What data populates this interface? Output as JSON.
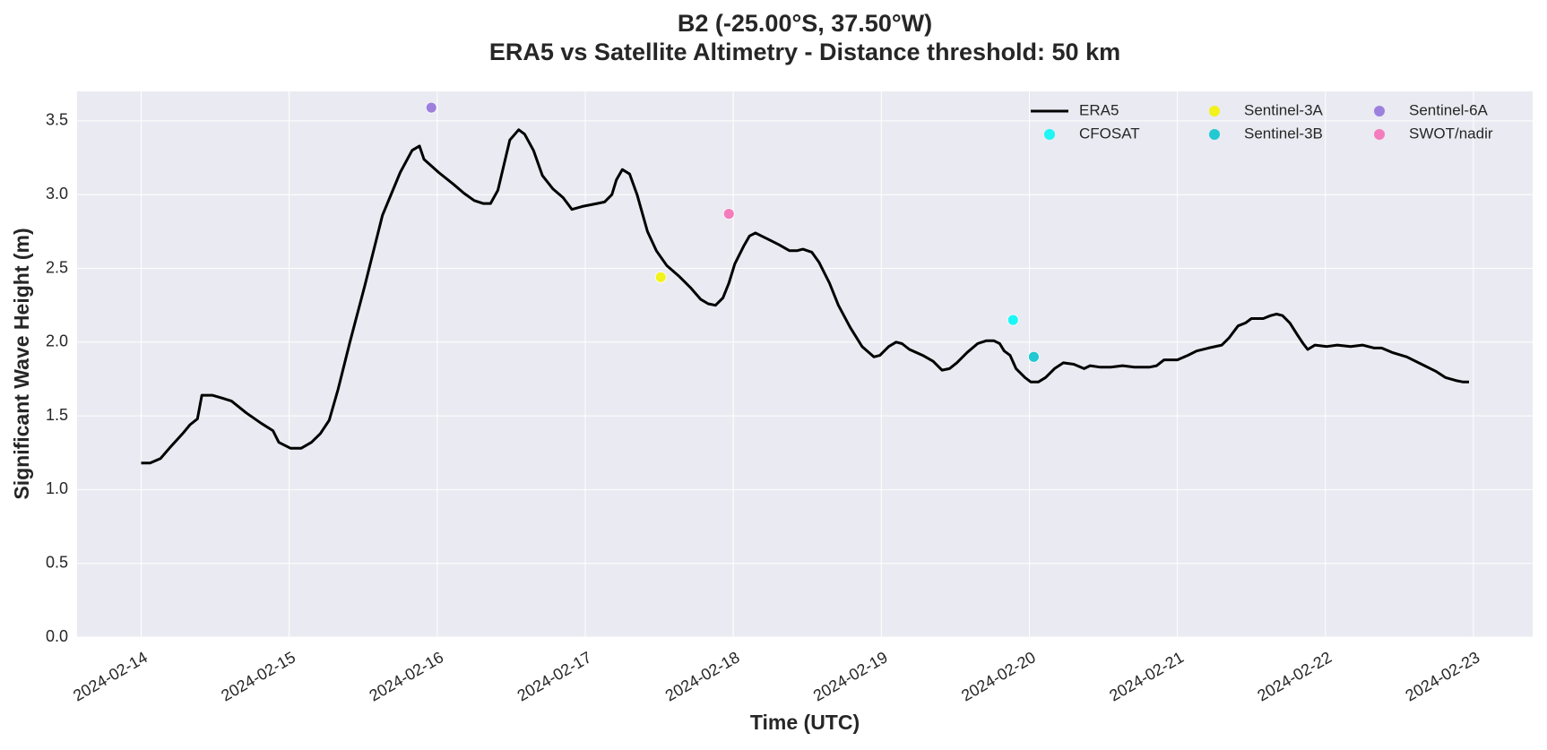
{
  "chart_data": {
    "type": "line",
    "title": "B2 (-25.00°S, 37.50°W)",
    "subtitle": "ERA5 vs Satellite Altimetry - Distance threshold: 50 km",
    "x_label": "Time (UTC)",
    "y_label": "Significant Wave Height (m)",
    "xlim": [
      -0.433,
      9.4
    ],
    "xticks": [
      {
        "value": 0,
        "label": "2024-02-14"
      },
      {
        "value": 1,
        "label": "2024-02-15"
      },
      {
        "value": 2,
        "label": "2024-02-16"
      },
      {
        "value": 3,
        "label": "2024-02-17"
      },
      {
        "value": 4,
        "label": "2024-02-18"
      },
      {
        "value": 5,
        "label": "2024-02-19"
      },
      {
        "value": 6,
        "label": "2024-02-20"
      },
      {
        "value": 7,
        "label": "2024-02-21"
      },
      {
        "value": 8,
        "label": "2024-02-22"
      },
      {
        "value": 9,
        "label": "2024-02-23"
      }
    ],
    "ylim": [
      0,
      3.7
    ],
    "yticks": [
      {
        "value": 0,
        "label": "0.0"
      },
      0.5,
      {
        "value": 1,
        "label": "1.0"
      },
      1.5,
      {
        "value": 2,
        "label": "2.0"
      },
      2.5,
      {
        "value": 3,
        "label": "3.0"
      },
      3.5
    ],
    "grid": true,
    "legend": "upper right",
    "series": [
      {
        "name": "ERA5",
        "type": "line",
        "color": "#000000",
        "x": [
          0,
          0.06,
          0.13,
          0.19,
          0.28,
          0.33,
          0.38,
          0.41,
          0.48,
          0.55,
          0.61,
          0.71,
          0.81,
          0.89,
          0.93,
          1.01,
          1.08,
          1.15,
          1.21,
          1.27,
          1.33,
          1.41,
          1.51,
          1.63,
          1.75,
          1.83,
          1.88,
          1.91,
          2.01,
          2.11,
          2.18,
          2.25,
          2.31,
          2.36,
          2.41,
          2.49,
          2.55,
          2.59,
          2.65,
          2.71,
          2.78,
          2.85,
          2.91,
          2.98,
          3.08,
          3.13,
          3.18,
          3.21,
          3.25,
          3.3,
          3.35,
          3.42,
          3.48,
          3.55,
          3.63,
          3.71,
          3.78,
          3.83,
          3.88,
          3.93,
          3.97,
          4.01,
          4.07,
          4.11,
          4.15,
          4.19,
          4.25,
          4.31,
          4.38,
          4.43,
          4.47,
          4.53,
          4.58,
          4.65,
          4.71,
          4.79,
          4.87,
          4.95,
          4.99,
          5.05,
          5.1,
          5.14,
          5.19,
          5.28,
          5.35,
          5.41,
          5.46,
          5.51,
          5.58,
          5.65,
          5.71,
          5.76,
          5.8,
          5.83,
          5.87,
          5.91,
          5.97,
          6.01,
          6.06,
          6.11,
          6.17,
          6.23,
          6.3,
          6.37,
          6.41,
          6.48,
          6.55,
          6.63,
          6.71,
          6.81,
          6.86,
          6.91,
          7.0,
          7.07,
          7.13,
          7.21,
          7.3,
          7.35,
          7.41,
          7.46,
          7.5,
          7.58,
          7.63,
          7.67,
          7.71,
          7.76,
          7.81,
          7.85,
          7.88,
          7.93,
          8.01,
          8.08,
          8.17,
          8.25,
          8.33,
          8.38,
          8.45,
          8.55,
          8.65,
          8.75,
          8.81,
          8.88,
          8.93,
          8.97
        ],
        "values": [
          1.18,
          1.18,
          1.21,
          1.28,
          1.38,
          1.44,
          1.48,
          1.64,
          1.64,
          1.62,
          1.6,
          1.52,
          1.45,
          1.4,
          1.32,
          1.28,
          1.28,
          1.32,
          1.38,
          1.47,
          1.68,
          2.0,
          2.38,
          2.86,
          3.15,
          3.3,
          3.33,
          3.24,
          3.15,
          3.07,
          3.01,
          2.96,
          2.94,
          2.94,
          3.03,
          3.37,
          3.44,
          3.41,
          3.3,
          3.13,
          3.04,
          2.98,
          2.9,
          2.92,
          2.94,
          2.95,
          3.0,
          3.1,
          3.17,
          3.14,
          3.0,
          2.75,
          2.62,
          2.52,
          2.45,
          2.37,
          2.29,
          2.26,
          2.25,
          2.3,
          2.4,
          2.53,
          2.65,
          2.72,
          2.74,
          2.72,
          2.69,
          2.66,
          2.62,
          2.62,
          2.63,
          2.61,
          2.54,
          2.4,
          2.25,
          2.1,
          1.97,
          1.9,
          1.91,
          1.97,
          2.0,
          1.99,
          1.95,
          1.91,
          1.87,
          1.81,
          1.82,
          1.86,
          1.93,
          1.99,
          2.01,
          2.01,
          1.99,
          1.94,
          1.91,
          1.82,
          1.76,
          1.73,
          1.73,
          1.76,
          1.82,
          1.86,
          1.85,
          1.82,
          1.84,
          1.83,
          1.83,
          1.84,
          1.83,
          1.83,
          1.84,
          1.88,
          1.88,
          1.91,
          1.94,
          1.96,
          1.98,
          2.03,
          2.11,
          2.13,
          2.16,
          2.16,
          2.18,
          2.19,
          2.18,
          2.13,
          2.05,
          1.99,
          1.95,
          1.98,
          1.97,
          1.98,
          1.97,
          1.98,
          1.96,
          1.96,
          1.93,
          1.9,
          1.85,
          1.8,
          1.76,
          1.74,
          1.73,
          1.73
        ]
      },
      {
        "name": "CFOSAT",
        "type": "scatter",
        "color": "#1ef5f5",
        "x": [
          5.89
        ],
        "values": [
          2.15
        ]
      },
      {
        "name": "Sentinel-3A",
        "type": "scatter",
        "color": "#f2f21c",
        "x": [
          3.51
        ],
        "values": [
          2.44
        ]
      },
      {
        "name": "Sentinel-3B",
        "type": "scatter",
        "color": "#22c8d2",
        "x": [
          6.03
        ],
        "values": [
          1.9
        ]
      },
      {
        "name": "Sentinel-6A",
        "type": "scatter",
        "color": "#9d80de",
        "x": [
          1.96
        ],
        "values": [
          3.59
        ]
      },
      {
        "name": "SWOT/nadir",
        "type": "scatter",
        "color": "#f47cbc",
        "x": [
          3.97
        ],
        "values": [
          2.87
        ]
      }
    ]
  }
}
